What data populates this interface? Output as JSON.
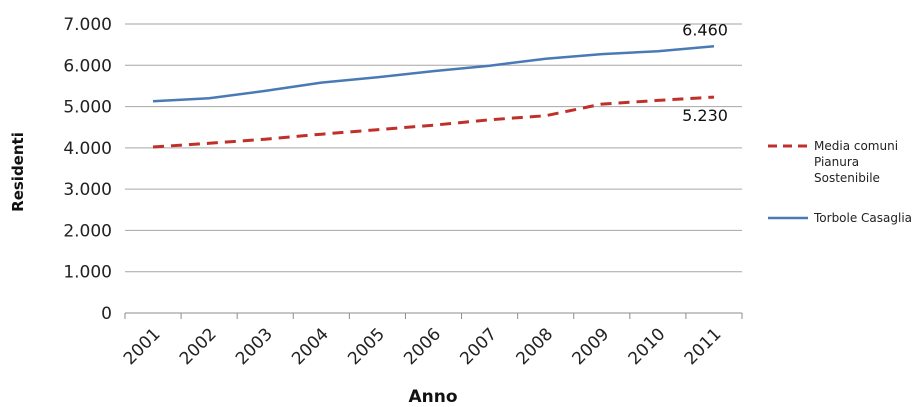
{
  "chart_data": {
    "type": "line",
    "title": "",
    "xlabel": "Anno",
    "ylabel": "Residenti",
    "categories": [
      "2001",
      "2002",
      "2003",
      "2004",
      "2005",
      "2006",
      "2007",
      "2008",
      "2009",
      "2010",
      "2011"
    ],
    "ylim": [
      0,
      7000
    ],
    "yticks": [
      0,
      1000,
      2000,
      3000,
      4000,
      5000,
      6000,
      7000
    ],
    "ytick_labels": [
      "0",
      "1.000",
      "2.000",
      "3.000",
      "4.000",
      "5.000",
      "6.000",
      "7.000"
    ],
    "grid": true,
    "legend_position": "right",
    "series": [
      {
        "name": "Media comuni Pianura Sostenibile",
        "legend_lines": [
          "Media comuni",
          "Pianura",
          "Sostenibile"
        ],
        "color": "#c0302b",
        "style": "dashed",
        "values": [
          4020,
          4110,
          4210,
          4330,
          4440,
          4550,
          4680,
          4780,
          5060,
          5150,
          5230
        ],
        "end_label": "5.230"
      },
      {
        "name": "Torbole Casaglia",
        "legend_lines": [
          "Torbole Casaglia"
        ],
        "color": "#4a7ab5",
        "style": "solid",
        "values": [
          5130,
          5200,
          5380,
          5580,
          5710,
          5860,
          5990,
          6160,
          6270,
          6340,
          6460
        ],
        "end_label": "6.460"
      }
    ]
  }
}
